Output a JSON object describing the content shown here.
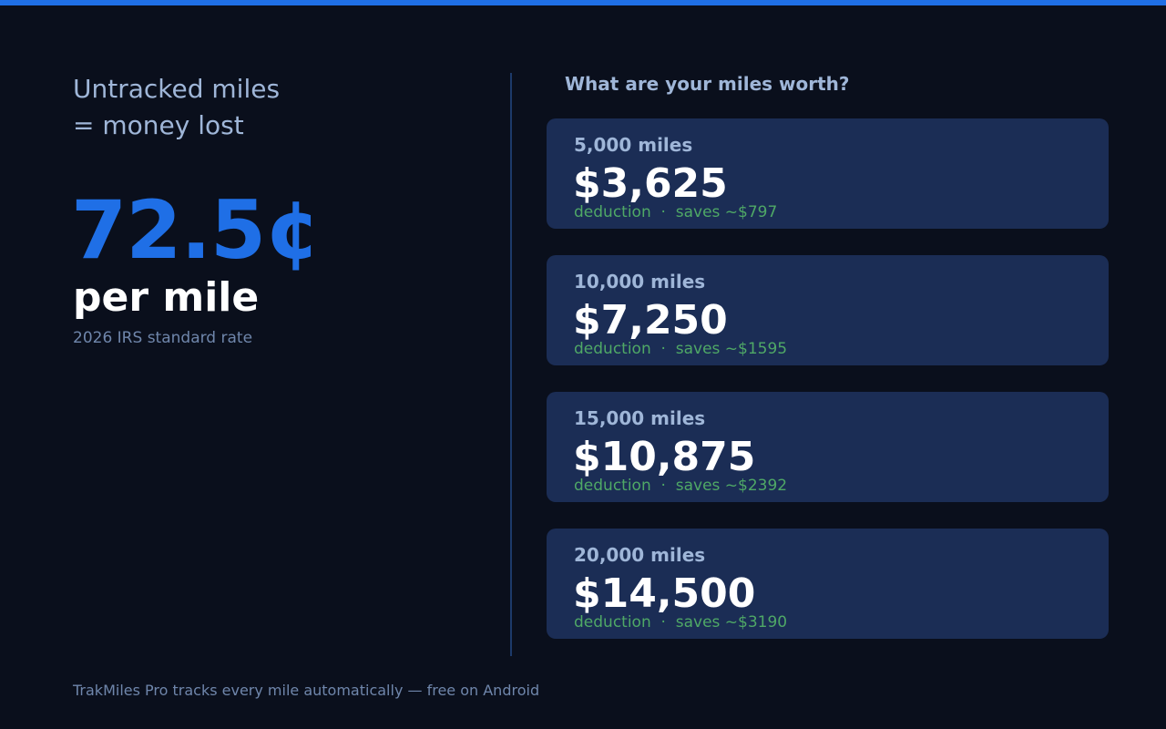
{
  "brand": {
    "accent": "#1f6fe6",
    "background": "#0a0f1c",
    "card_background": "#1b2d55",
    "positive": "#4fa866"
  },
  "left": {
    "headline_line1": "Untracked miles",
    "headline_line2": "= money lost",
    "rate_value": "72.5¢",
    "rate_unit": "per mile",
    "rate_caption": "2026 IRS standard rate"
  },
  "right": {
    "title": "What are your miles worth?",
    "cards": [
      {
        "miles": "5,000 miles",
        "amount": "$3,625",
        "note": "deduction  ·  saves ~$797"
      },
      {
        "miles": "10,000 miles",
        "amount": "$7,250",
        "note": "deduction  ·  saves ~$1595"
      },
      {
        "miles": "15,000 miles",
        "amount": "$10,875",
        "note": "deduction  ·  saves ~$2392"
      },
      {
        "miles": "20,000 miles",
        "amount": "$14,500",
        "note": "deduction  ·  saves ~$3190"
      }
    ]
  },
  "footer": {
    "text": "TrakMiles Pro tracks every mile automatically — free on Android"
  }
}
